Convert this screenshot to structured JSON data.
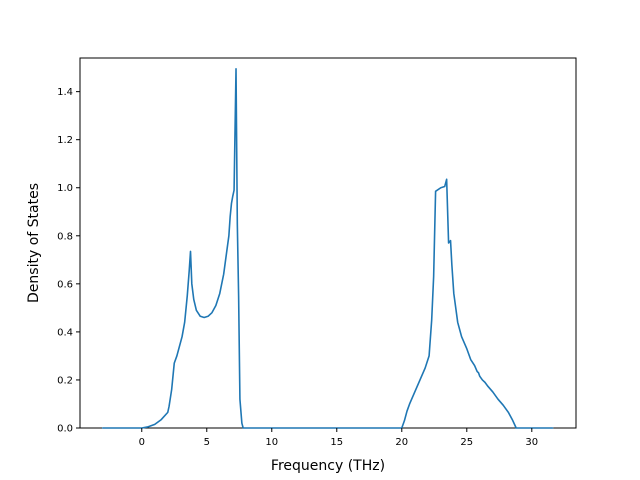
{
  "chart_data": {
    "type": "line",
    "title": "",
    "xlabel": "Frequency (THz)",
    "ylabel": "Density of States",
    "xlim": [
      -4.75,
      33.4
    ],
    "ylim": [
      0,
      1.54
    ],
    "xticks": [
      0,
      5,
      10,
      15,
      20,
      25,
      30
    ],
    "yticks": [
      0.0,
      0.2,
      0.4,
      0.6,
      0.8,
      1.0,
      1.2,
      1.4
    ],
    "ytick_labels": [
      "0.0",
      "0.2",
      "0.4",
      "0.6",
      "0.8",
      "1.0",
      "1.2",
      "1.4"
    ],
    "grid": false,
    "legend": "none",
    "color": "#1f77b4",
    "series": [
      {
        "x": [
          -3.0,
          -2.0,
          -1.0,
          0.0,
          0.5,
          1.0,
          1.5,
          2.0,
          2.1,
          2.3,
          2.5,
          2.7,
          2.9,
          3.1,
          3.3,
          3.5,
          3.65,
          3.75,
          3.85,
          4.0,
          4.2,
          4.5,
          4.8,
          5.1,
          5.4,
          5.7,
          6.0,
          6.3,
          6.5,
          6.7,
          6.8,
          6.9,
          7.0,
          7.1,
          7.25,
          7.35,
          7.45,
          7.55,
          7.7,
          7.8,
          8.0,
          9.0,
          10.0,
          12.0,
          14.0,
          16.0,
          18.0,
          19.0,
          20.0,
          20.2,
          20.4,
          20.6,
          21.0,
          21.4,
          21.8,
          22.1,
          22.3,
          22.45,
          22.6,
          23.0,
          23.3,
          23.45,
          23.6,
          23.75,
          23.85,
          24.0,
          24.3,
          24.6,
          25.0,
          25.3,
          25.6,
          25.8,
          25.9,
          26.0,
          26.2,
          26.4,
          26.6,
          27.0,
          27.4,
          27.8,
          28.2,
          28.5,
          28.8,
          29.0,
          30.0,
          31.0,
          31.6
        ],
        "y": [
          0.0,
          0.0,
          0.0,
          0.0,
          0.005,
          0.015,
          0.035,
          0.065,
          0.09,
          0.16,
          0.27,
          0.3,
          0.34,
          0.38,
          0.44,
          0.55,
          0.655,
          0.735,
          0.6,
          0.535,
          0.49,
          0.465,
          0.46,
          0.465,
          0.48,
          0.51,
          0.56,
          0.64,
          0.72,
          0.8,
          0.88,
          0.935,
          0.965,
          0.99,
          1.495,
          0.85,
          0.55,
          0.12,
          0.02,
          0.0,
          0.0,
          0.0,
          0.0,
          0.0,
          0.0,
          0.0,
          0.0,
          0.0,
          0.0,
          0.03,
          0.07,
          0.1,
          0.15,
          0.2,
          0.25,
          0.3,
          0.45,
          0.63,
          0.985,
          1.0,
          1.005,
          1.035,
          0.77,
          0.78,
          0.68,
          0.56,
          0.44,
          0.38,
          0.33,
          0.285,
          0.26,
          0.235,
          0.23,
          0.215,
          0.2,
          0.19,
          0.175,
          0.15,
          0.12,
          0.095,
          0.065,
          0.035,
          0.0,
          0.0,
          0.0,
          0.0,
          0.0
        ]
      }
    ]
  }
}
